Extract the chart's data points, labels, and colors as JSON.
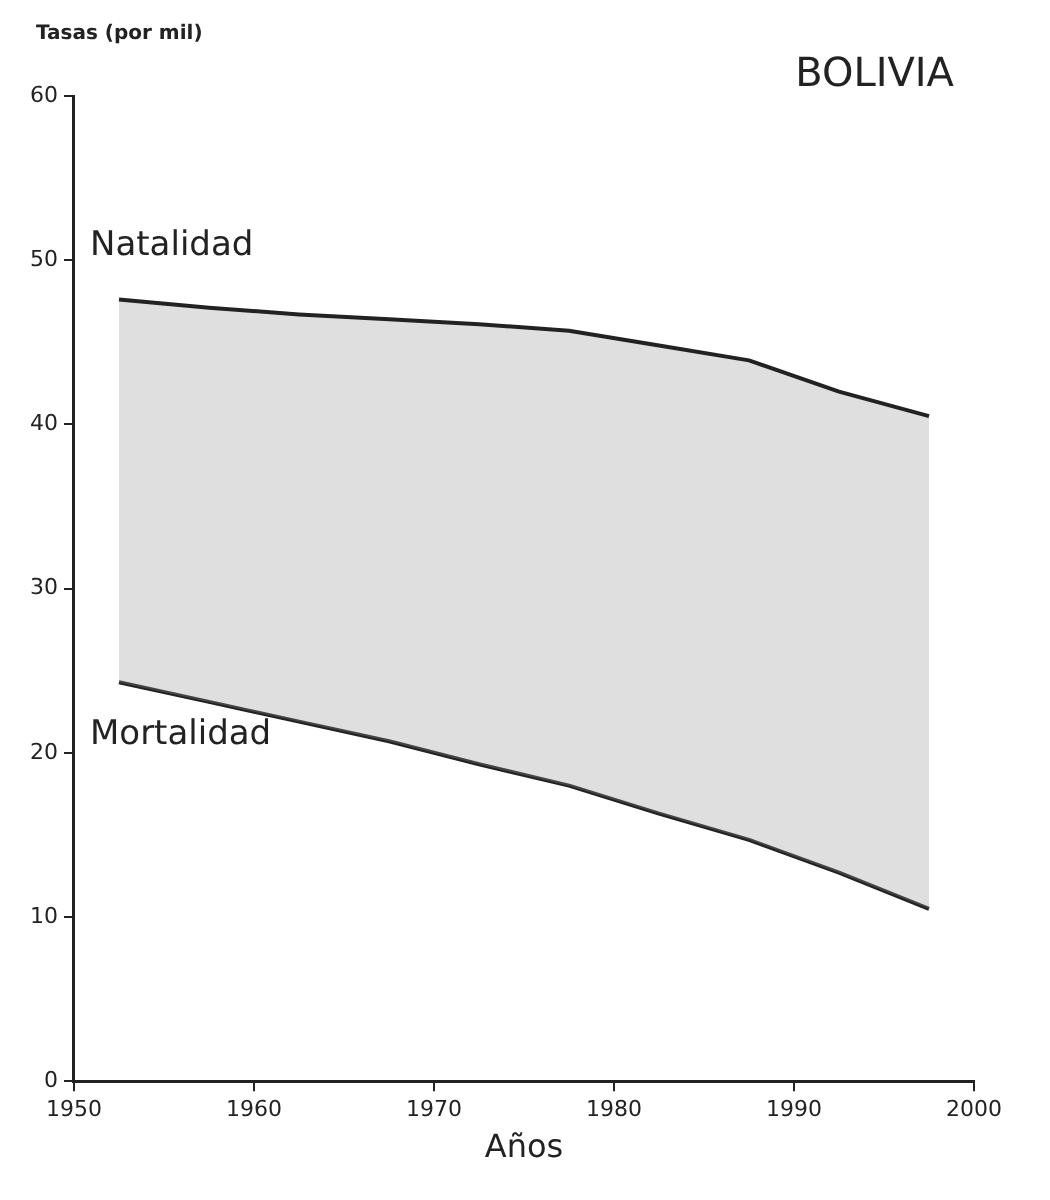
{
  "chart_data": {
    "type": "line",
    "title": "BOLIVIA",
    "xlabel": "Años",
    "ylabel": "Tasas (por mil)",
    "x": [
      1952.5,
      1957.5,
      1962.5,
      1967.5,
      1972.5,
      1977.5,
      1982.5,
      1987.5,
      1992.5,
      1997.5
    ],
    "series": [
      {
        "name": "Natalidad",
        "type": "area",
        "color": "#222222",
        "values": [
          47.6,
          47.1,
          46.7,
          46.4,
          46.1,
          45.7,
          44.8,
          43.9,
          42.0,
          40.5
        ]
      },
      {
        "name": "Mortalidad",
        "type": "line",
        "color": "#222222",
        "values": [
          24.3,
          23.1,
          21.9,
          20.7,
          19.3,
          18.0,
          16.3,
          14.7,
          12.7,
          10.5
        ]
      }
    ],
    "xlim": [
      1950,
      2000
    ],
    "xticks": [
      1950,
      1960,
      1970,
      1980,
      1990,
      2000
    ],
    "ylim": [
      0,
      60
    ],
    "yticks": [
      0,
      10,
      20,
      30,
      40,
      50,
      60
    ],
    "grid": false,
    "legend": false,
    "marker": "none",
    "line_style": "solid"
  }
}
